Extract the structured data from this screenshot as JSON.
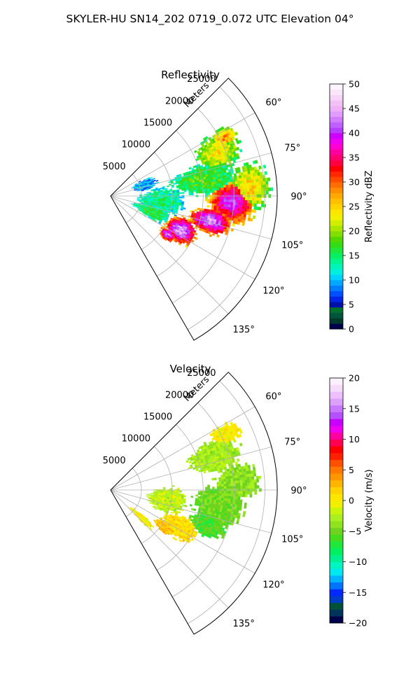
{
  "figure": {
    "suptitle": "SKYLER-HU  SN14_202  0719_0.072 UTC Elevation 04°"
  },
  "chart_data": [
    {
      "type": "heatmap",
      "title": "Reflectivity",
      "range_axis_label": "Meters",
      "range_ticks": [
        5000,
        10000,
        15000,
        20000,
        25000
      ],
      "range_tick_labels": [
        "5000",
        "10000",
        "15000",
        "20000",
        "25000"
      ],
      "range_max": 27000,
      "azimuth_range_deg": [
        45,
        150
      ],
      "azimuth_ticks": [
        60,
        75,
        90,
        105,
        120,
        135
      ],
      "azimuth_tick_labels": [
        "60°",
        "75°",
        "90°",
        "105°",
        "120°",
        "135°"
      ],
      "grid": true,
      "colorbar": {
        "label": "Reflectivity dBZ",
        "min": 0,
        "max": 50,
        "ticks": [
          0,
          5,
          10,
          15,
          20,
          25,
          30,
          35,
          40,
          45,
          50
        ],
        "tick_labels": [
          "0",
          "5",
          "10",
          "15",
          "20",
          "25",
          "30",
          "35",
          "40",
          "45",
          "50"
        ],
        "colors": [
          "#00004a",
          "#003a2e",
          "#00543a",
          "#00702f",
          "#0011a8",
          "#0026e8",
          "#0050ff",
          "#007dff",
          "#00a8ff",
          "#00d2ff",
          "#00f0e0",
          "#00f5b8",
          "#00f58a",
          "#06f062",
          "#1ee63a",
          "#34dc14",
          "#54d600",
          "#82de00",
          "#aae600",
          "#d2ee00",
          "#f0f000",
          "#ffe600",
          "#ffd200",
          "#ffbe00",
          "#ffa800",
          "#ff8c00",
          "#ff6c00",
          "#ff4a00",
          "#ff2600",
          "#ff0000",
          "#ff0040",
          "#ff0070",
          "#ff00a0",
          "#ff00d0",
          "#f000f0",
          "#d000ff",
          "#b83cff",
          "#c060ff",
          "#d27cff",
          "#e09cff",
          "#eeb0f6",
          "#f2c2f6",
          "#f6d4f8",
          "#fae6fb",
          "#fdf4fd"
        ]
      },
      "blobs": [
        {
          "az": 93,
          "r": 19500,
          "sa": 10,
          "sr": 3800,
          "dbz": 40
        },
        {
          "az": 104,
          "r": 16500,
          "sa": 7,
          "sr": 3500,
          "dbz": 44
        },
        {
          "az": 116,
          "r": 12500,
          "sa": 9,
          "sr": 2600,
          "dbz": 45
        },
        {
          "az": 124,
          "r": 11000,
          "sa": 5,
          "sr": 1500,
          "dbz": 42
        },
        {
          "az": 68,
          "r": 18500,
          "sa": 8,
          "sr": 3500,
          "dbz": 24
        },
        {
          "az": 63,
          "r": 20500,
          "sa": 4,
          "sr": 2200,
          "dbz": 28
        },
        {
          "az": 80,
          "r": 15000,
          "sa": 9,
          "sr": 5000,
          "dbz": 18
        },
        {
          "az": 96,
          "r": 8000,
          "sa": 14,
          "sr": 3500,
          "dbz": 15
        },
        {
          "az": 110,
          "r": 7000,
          "sa": 9,
          "sr": 3000,
          "dbz": 17
        },
        {
          "az": 86,
          "r": 22500,
          "sa": 9,
          "sr": 3000,
          "dbz": 25
        },
        {
          "az": 72,
          "r": 5500,
          "sa": 8,
          "sr": 2000,
          "dbz": 10
        }
      ]
    },
    {
      "type": "heatmap",
      "title": "Velocity",
      "range_axis_label": "Meters",
      "range_ticks": [
        5000,
        10000,
        15000,
        20000,
        25000
      ],
      "range_tick_labels": [
        "5000",
        "10000",
        "15000",
        "20000",
        "25000"
      ],
      "range_max": 27000,
      "azimuth_range_deg": [
        45,
        150
      ],
      "azimuth_ticks": [
        60,
        75,
        90,
        105,
        120,
        135
      ],
      "azimuth_tick_labels": [
        "60°",
        "75°",
        "90°",
        "105°",
        "120°",
        "135°"
      ],
      "grid": true,
      "colorbar": {
        "label": "Velocity (m/s)",
        "min": -20,
        "max": 20,
        "ticks": [
          -20,
          -15,
          -10,
          -5,
          0,
          5,
          10,
          15,
          20
        ],
        "tick_labels": [
          "−20",
          "−15",
          "−10",
          "−5",
          "0",
          "5",
          "10",
          "15",
          "20"
        ],
        "colors": [
          "#00004a",
          "#00345a",
          "#00503a",
          "#003cc8",
          "#0028ff",
          "#0074ff",
          "#00b4ff",
          "#00e8f0",
          "#00f5c0",
          "#00f090",
          "#00f060",
          "#1ee83c",
          "#46dc1e",
          "#6ed21e",
          "#8ee21e",
          "#aaf01e",
          "#c8f50a",
          "#f0f000",
          "#ffe600",
          "#ffd200",
          "#ffb400",
          "#ff9600",
          "#ff7800",
          "#ff5000",
          "#ff2000",
          "#ff0000",
          "#ff0050",
          "#ff00a0",
          "#f000f0",
          "#c800ff",
          "#b450ff",
          "#c878ff",
          "#dca0ff",
          "#ecc0fa",
          "#f6dcfb",
          "#fcf0fd"
        ]
      },
      "blobs": [
        {
          "az": 98,
          "r": 17500,
          "sa": 10,
          "sr": 4000,
          "vel": -5
        },
        {
          "az": 86,
          "r": 20500,
          "sa": 7,
          "sr": 3500,
          "vel": -4
        },
        {
          "az": 72,
          "r": 17500,
          "sa": 8,
          "sr": 4000,
          "vel": -3
        },
        {
          "az": 110,
          "r": 16500,
          "sa": 6,
          "sr": 3000,
          "vel": -6
        },
        {
          "az": 118,
          "r": 12500,
          "sa": 8,
          "sr": 3000,
          "vel": 1
        },
        {
          "az": 124,
          "r": 10500,
          "sa": 5,
          "sr": 2000,
          "vel": 2
        },
        {
          "az": 132,
          "r": 6500,
          "sa": 4,
          "sr": 2500,
          "vel": 0
        },
        {
          "az": 100,
          "r": 9000,
          "sa": 12,
          "sr": 3000,
          "vel": -2
        },
        {
          "az": 64,
          "r": 20500,
          "sa": 4,
          "sr": 2500,
          "vel": 0
        }
      ]
    }
  ]
}
